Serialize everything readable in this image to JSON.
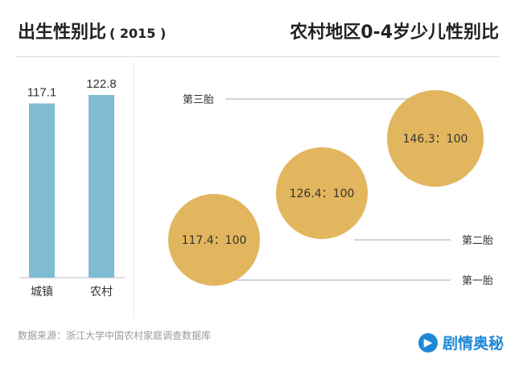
{
  "left_panel": {
    "title": "出生性别比",
    "subtitle": "( 2015 )"
  },
  "right_panel": {
    "title": "农村地区0-4岁少儿性别比"
  },
  "source": "数据来源：浙江大学中国农村家庭调查数据库",
  "watermark": {
    "text": "剧情奥秘",
    "icon": "play-logo-icon"
  },
  "colors": {
    "bar": "#7fbcd4",
    "bubble": "#e2b65e",
    "leader_line": "#aaaaaa"
  },
  "chart_data": [
    {
      "type": "bar",
      "title": "出生性别比 ( 2015 )",
      "categories": [
        "城镇",
        "农村"
      ],
      "values": [
        117.1,
        122.8
      ],
      "value_labels": [
        "117.1",
        "122.8"
      ]
    },
    {
      "type": "bubble",
      "title": "农村地区0-4岁少儿性别比",
      "categories": [
        "第一胎",
        "第二胎",
        "第三胎"
      ],
      "values": [
        117.4,
        126.4,
        146.3
      ],
      "labels": [
        "117.4：100",
        "126.4：100",
        "146.3：100"
      ]
    }
  ]
}
